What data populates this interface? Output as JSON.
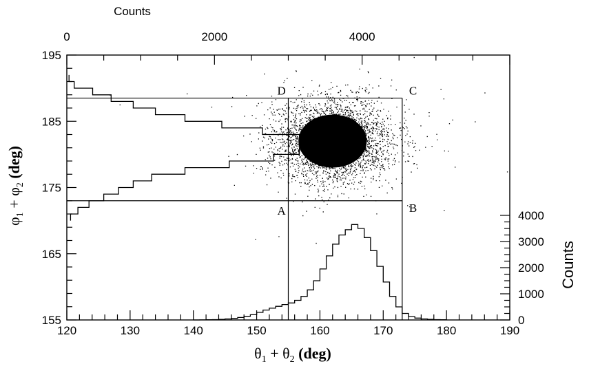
{
  "chart_data": {
    "type": "scatter",
    "x_axis": {
      "label_main": "θ",
      "label_sub1": "1",
      "label_mid": " + θ",
      "label_sub2": "2",
      "label_unit": " (deg)",
      "range": [
        120,
        190
      ],
      "ticks": [
        "120",
        "130",
        "140",
        "150",
        "160",
        "170",
        "180",
        "190"
      ]
    },
    "y_axis": {
      "label_main": "φ",
      "label_sub1": "1",
      "label_mid": " + φ",
      "label_sub2": "2",
      "label_unit": " (deg)",
      "range": [
        155,
        195
      ],
      "ticks": [
        "155",
        "165",
        "175",
        "185",
        "195"
      ]
    },
    "top_axis": {
      "title": "Counts",
      "range": [
        0,
        6000
      ],
      "ticks": [
        "0",
        "2000",
        "4000"
      ]
    },
    "right_axis": {
      "title": "Counts",
      "range": [
        0,
        6000
      ],
      "ticks": [
        "0",
        "1000",
        "2000",
        "3000",
        "4000"
      ]
    },
    "scatter": {
      "center": [
        162,
        182
      ],
      "spread": [
        4.6,
        3.2
      ],
      "core_radius": [
        5.4,
        4.0
      ]
    },
    "cut_region": {
      "x": [
        155,
        173
      ],
      "y": [
        173,
        188.5
      ],
      "corners": [
        {
          "label": "A",
          "x": 155,
          "y": 173
        },
        {
          "label": "B",
          "x": 173,
          "y": 173
        },
        {
          "label": "C",
          "x": 173,
          "y": 188.5
        },
        {
          "label": "D",
          "x": 155,
          "y": 188.5
        }
      ]
    },
    "histogram_x": {
      "bin_edges_start": 140,
      "bin_width": 1,
      "counts": [
        0,
        3,
        7,
        14,
        25,
        40,
        60,
        95,
        140,
        200,
        290,
        380,
        450,
        520,
        590,
        650,
        750,
        900,
        1150,
        1500,
        1950,
        2450,
        2900,
        3250,
        3450,
        3650,
        3500,
        3150,
        2650,
        2050,
        1450,
        900,
        500,
        250,
        130,
        70,
        40,
        24,
        14,
        8
      ]
    },
    "histogram_y": {
      "bin_edges_start": 170,
      "bin_width": 1,
      "counts": [
        50,
        150,
        300,
        500,
        700,
        900,
        1150,
        1600,
        2200,
        2800,
        3150,
        3300,
        3150,
        2650,
        2100,
        1600,
        1200,
        900,
        600,
        350,
        100,
        30
      ]
    }
  }
}
